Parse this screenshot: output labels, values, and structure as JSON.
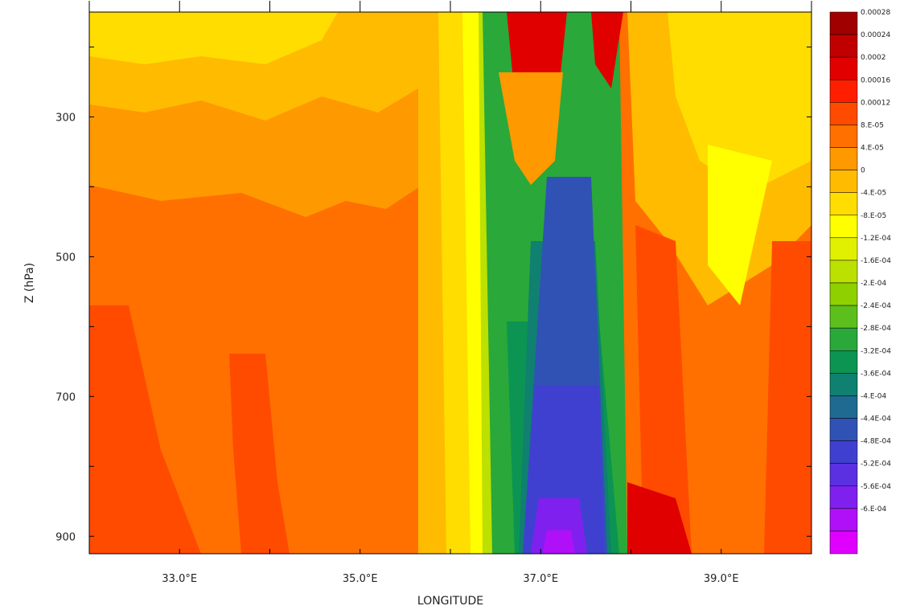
{
  "chart_data": {
    "type": "heatmap",
    "subtype": "filled-contour",
    "xlabel": "LONGITUDE",
    "ylabel": "Z (hPa)",
    "x_range_deg_east": [
      32.0,
      40.0
    ],
    "y_range_hpa": [
      925,
      150
    ],
    "y_axis_direction": "pressure decreasing upward",
    "x_ticks": [
      {
        "value": 33.0,
        "label": "33.0°E"
      },
      {
        "value": 35.0,
        "label": "35.0°E"
      },
      {
        "value": 37.0,
        "label": "37.0°E"
      },
      {
        "value": 39.0,
        "label": "39.0°E"
      }
    ],
    "y_ticks": [
      {
        "value": 300,
        "label": "300"
      },
      {
        "value": 500,
        "label": "500"
      },
      {
        "value": 700,
        "label": "700"
      },
      {
        "value": 900,
        "label": "900"
      }
    ],
    "legend_position": "right",
    "colorbar": {
      "levels": [
        {
          "label": "0.00028",
          "color": "#a00000"
        },
        {
          "label": "0.00024",
          "color": "#c00000"
        },
        {
          "label": "0.0002",
          "color": "#e00000"
        },
        {
          "label": "0.00016",
          "color": "#ff1e00"
        },
        {
          "label": "0.00012",
          "color": "#ff4b00"
        },
        {
          "label": "8.E-05",
          "color": "#ff7000"
        },
        {
          "label": "4.E-05",
          "color": "#ff9900"
        },
        {
          "label": "0",
          "color": "#ffbb00"
        },
        {
          "label": "-4.E-05",
          "color": "#ffdd00"
        },
        {
          "label": "-8.E-05",
          "color": "#ffff00"
        },
        {
          "label": "-1.2E-04",
          "color": "#e0f000"
        },
        {
          "label": "-1.6E-04",
          "color": "#bce000"
        },
        {
          "label": "-2.E-04",
          "color": "#8fd000"
        },
        {
          "label": "-2.4E-04",
          "color": "#5cbf1c"
        },
        {
          "label": "-2.8E-04",
          "color": "#2aa83a"
        },
        {
          "label": "-3.2E-04",
          "color": "#0c9452"
        },
        {
          "label": "-3.6E-04",
          "color": "#108070"
        },
        {
          "label": "-4.E-04",
          "color": "#1f6a90"
        },
        {
          "label": "-4.4E-04",
          "color": "#3052b4"
        },
        {
          "label": "-4.8E-04",
          "color": "#4040d0"
        },
        {
          "label": "-5.2E-04",
          "color": "#5a30e0"
        },
        {
          "label": "-5.6E-04",
          "color": "#8020ee"
        },
        {
          "label": "-6.E-04",
          "color": "#b010f8"
        }
      ],
      "extra_bottom_color": "#e000ff"
    },
    "field_summary": "Narrow negative column centered near 37.2°E (about -6E-04 near 850–925 hPa) flanked by small positive maxima near 37.0°E and 37.7°E above 300 hPa (~0.00020–0.00028); positive values of about 4E-05 to 0.00016 elsewhere."
  }
}
